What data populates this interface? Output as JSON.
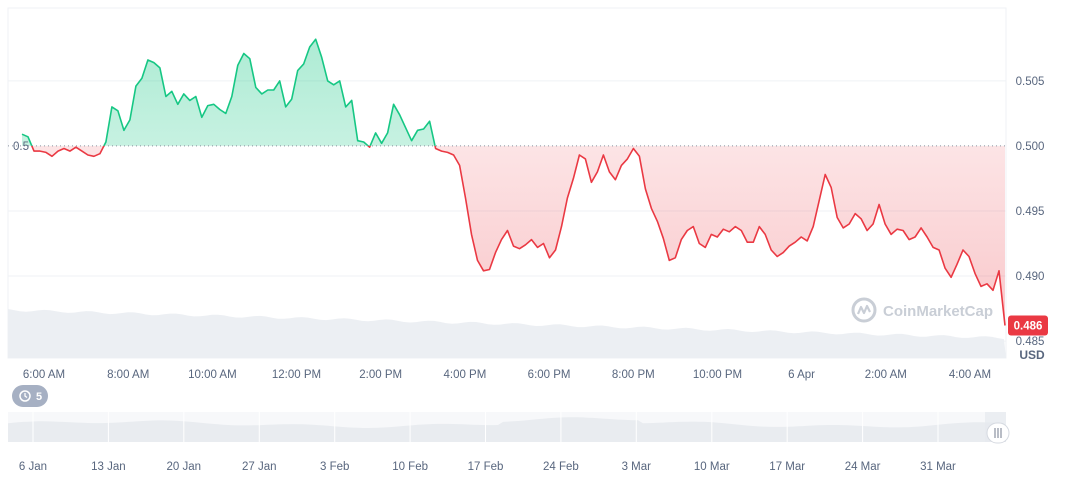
{
  "chart_data": {
    "type": "line",
    "currency_label": "USD",
    "watermark": "CoinMarketCap",
    "reference_value": 0.5,
    "reference_label": "0.5",
    "last_value_label": "0.486",
    "history_button_label": "5",
    "ylim": [
      0.4837,
      0.5106
    ],
    "y_ticks": [
      {
        "value": 0.485,
        "label": "0.485"
      },
      {
        "value": 0.49,
        "label": "0.490"
      },
      {
        "value": 0.495,
        "label": "0.495"
      },
      {
        "value": 0.5,
        "label": "0.500"
      },
      {
        "value": 0.505,
        "label": "0.505"
      }
    ],
    "x_ticks": [
      "6:00 AM",
      "8:00 AM",
      "10:00 AM",
      "12:00 PM",
      "2:00 PM",
      "4:00 PM",
      "6:00 PM",
      "8:00 PM",
      "10:00 PM",
      "6 Apr",
      "2:00 AM",
      "4:00 AM"
    ],
    "nav_ticks": [
      "6 Jan",
      "13 Jan",
      "20 Jan",
      "27 Jan",
      "3 Feb",
      "10 Feb",
      "17 Feb",
      "24 Feb",
      "3 Mar",
      "10 Mar",
      "17 Mar",
      "24 Mar",
      "31 Mar"
    ],
    "colors": {
      "up": "#16c784",
      "down": "#ea3943",
      "grid": "#eff2f5",
      "volume": "#eceff3"
    },
    "series": [
      {
        "values": [
          0.5009,
          0.5007,
          0.4996,
          0.4996,
          0.4995,
          0.4992,
          0.4996,
          0.4998,
          0.4996,
          0.4999,
          0.4996,
          0.4993,
          0.4992,
          0.4994,
          0.5003,
          0.503,
          0.5027,
          0.5012,
          0.502,
          0.5046,
          0.5052,
          0.5066,
          0.5064,
          0.506,
          0.5038,
          0.5042,
          0.5032,
          0.504,
          0.5035,
          0.5038,
          0.5022,
          0.5031,
          0.5032,
          0.5028,
          0.5025,
          0.5038,
          0.5062,
          0.5071,
          0.5067,
          0.5045,
          0.504,
          0.5043,
          0.5043,
          0.505,
          0.503,
          0.5036,
          0.5058,
          0.5063,
          0.5076,
          0.5082,
          0.5068,
          0.505,
          0.5047,
          0.505,
          0.503,
          0.5035,
          0.5004,
          0.5003,
          0.4999,
          0.501,
          0.5002,
          0.501,
          0.5032,
          0.5024,
          0.5014,
          0.5004,
          0.5012,
          0.5013,
          0.5019,
          0.4998,
          0.4996,
          0.4995,
          0.4993,
          0.4985,
          0.496,
          0.4932,
          0.4912,
          0.4904,
          0.4905,
          0.4918,
          0.4928,
          0.4935,
          0.4923,
          0.4921,
          0.4924,
          0.4928,
          0.4922,
          0.4925,
          0.4914,
          0.492,
          0.4938,
          0.496,
          0.4975,
          0.4993,
          0.499,
          0.4972,
          0.498,
          0.4993,
          0.498,
          0.4974,
          0.4985,
          0.499,
          0.4998,
          0.4992,
          0.4967,
          0.4952,
          0.4942,
          0.4929,
          0.4912,
          0.4914,
          0.4928,
          0.4935,
          0.4938,
          0.4925,
          0.4922,
          0.4932,
          0.493,
          0.4936,
          0.4934,
          0.4938,
          0.4935,
          0.4926,
          0.4926,
          0.4938,
          0.4932,
          0.492,
          0.4915,
          0.4918,
          0.4923,
          0.4926,
          0.493,
          0.4927,
          0.4938,
          0.4958,
          0.4978,
          0.4968,
          0.4945,
          0.4937,
          0.494,
          0.4948,
          0.4944,
          0.4935,
          0.494,
          0.4955,
          0.494,
          0.4932,
          0.4936,
          0.4935,
          0.4928,
          0.493,
          0.4937,
          0.493,
          0.4922,
          0.492,
          0.4906,
          0.4899,
          0.4909,
          0.492,
          0.4915,
          0.4902,
          0.4892,
          0.4894,
          0.4889,
          0.4904,
          0.4862
        ]
      }
    ]
  }
}
